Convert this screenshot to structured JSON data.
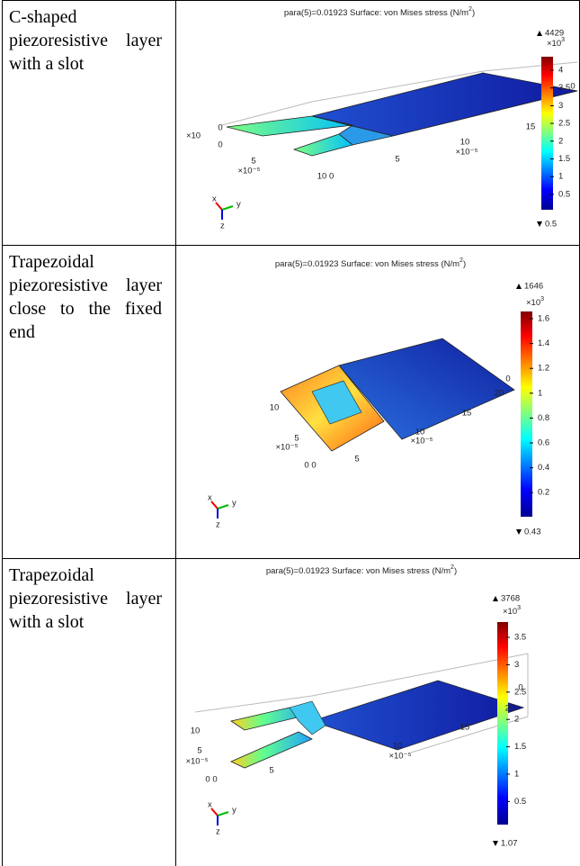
{
  "table": {
    "rows": [
      {
        "description": "C-shaped piezoresistive layer with a slot",
        "figure": {
          "title": "para(5)=0.01923  Surface: von Mises stress (N/m",
          "title_sup": "2",
          "title_end": ")",
          "max_label": "4429",
          "multiplier": "×10",
          "multiplier_sup": "3",
          "colorbar_ticks": [
            "4",
            "3.5",
            "3",
            "2.5",
            "2",
            "1.5",
            "1",
            "0.5"
          ],
          "min_label": "0.5",
          "axis_labels": [
            "0",
            "×10",
            "0",
            "5",
            "×10⁻⁵",
            "10 0",
            "5",
            "10",
            "×10⁻⁵",
            "15",
            "0"
          ],
          "triad": [
            "x",
            "y",
            "z"
          ]
        }
      },
      {
        "description": "Trapezoidal piezoresistive layer close to the fixed end",
        "figure": {
          "title": "para(5)=0.01923  Surface: von Mises stress (N/m",
          "title_sup": "2",
          "title_end": ")",
          "max_label": "1646",
          "multiplier": "×10",
          "multiplier_sup": "3",
          "colorbar_ticks": [
            "1.6",
            "1.4",
            "1.2",
            "1",
            "0.8",
            "0.6",
            "0.4",
            "0.2"
          ],
          "min_label": "0.43",
          "axis_labels": [
            "10",
            "5",
            "×10⁻⁵",
            "0 0",
            "5",
            "10",
            "×10⁻⁵",
            "15",
            "20",
            "0"
          ],
          "triad": [
            "x",
            "y",
            "z"
          ]
        }
      },
      {
        "description": "Trapezoidal piezoresistive layer with a slot",
        "figure": {
          "title": "para(5)=0.01923  Surface: von Mises stress (N/m",
          "title_sup": "2",
          "title_end": ")",
          "max_label": "3768",
          "multiplier": "×10",
          "multiplier_sup": "3",
          "colorbar_ticks": [
            "3.5",
            "3",
            "2.5",
            "2",
            "1.5",
            "1",
            "0.5"
          ],
          "min_label": "1.07",
          "axis_labels": [
            "10",
            "5",
            "×10⁻⁵",
            "0 0",
            "5",
            "10",
            "×10⁻⁵",
            "15",
            "20",
            "0"
          ],
          "triad": [
            "x",
            "y",
            "z"
          ]
        }
      }
    ]
  }
}
